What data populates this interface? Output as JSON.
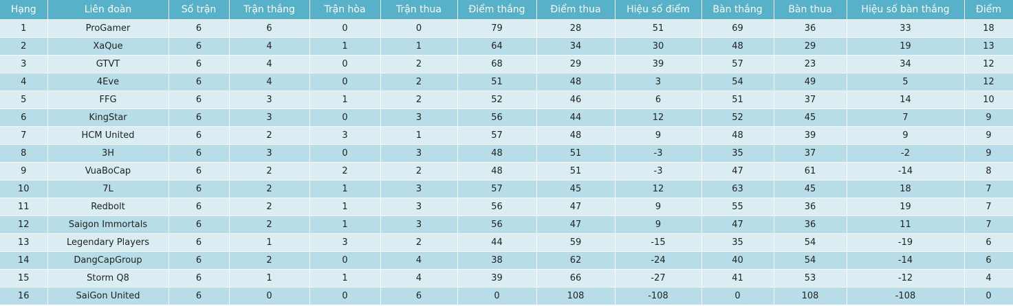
{
  "table": {
    "headers": [
      "Hạng",
      "Liên đoàn",
      "Số trận",
      "Trận thắng",
      "Trận hòa",
      "Trận thua",
      "Điểm thắng",
      "Điểm thua",
      "Hiệu số điểm",
      "Bàn thắng",
      "Bàn thua",
      "Hiệu số bàn thắng",
      "Điểm"
    ],
    "rows": [
      [
        "1",
        "ProGamer",
        "6",
        "6",
        "0",
        "0",
        "79",
        "28",
        "51",
        "69",
        "36",
        "33",
        "18"
      ],
      [
        "2",
        "XaQue",
        "6",
        "4",
        "1",
        "1",
        "64",
        "34",
        "30",
        "48",
        "29",
        "19",
        "13"
      ],
      [
        "3",
        "GTVT",
        "6",
        "4",
        "0",
        "2",
        "68",
        "29",
        "39",
        "57",
        "23",
        "34",
        "12"
      ],
      [
        "4",
        "4Eve",
        "6",
        "4",
        "0",
        "2",
        "51",
        "48",
        "3",
        "54",
        "49",
        "5",
        "12"
      ],
      [
        "5",
        "FFG",
        "6",
        "3",
        "1",
        "2",
        "52",
        "46",
        "6",
        "51",
        "37",
        "14",
        "10"
      ],
      [
        "6",
        "KingStar",
        "6",
        "3",
        "0",
        "3",
        "56",
        "44",
        "12",
        "52",
        "45",
        "7",
        "9"
      ],
      [
        "7",
        "HCM United",
        "6",
        "2",
        "3",
        "1",
        "57",
        "48",
        "9",
        "48",
        "39",
        "9",
        "9"
      ],
      [
        "8",
        "3H",
        "6",
        "3",
        "0",
        "3",
        "48",
        "51",
        "-3",
        "35",
        "37",
        "-2",
        "9"
      ],
      [
        "9",
        "VuaBoCap",
        "6",
        "2",
        "2",
        "2",
        "48",
        "51",
        "-3",
        "47",
        "61",
        "-14",
        "8"
      ],
      [
        "10",
        "7L",
        "6",
        "2",
        "1",
        "3",
        "57",
        "45",
        "12",
        "63",
        "45",
        "18",
        "7"
      ],
      [
        "11",
        "Redbolt",
        "6",
        "2",
        "1",
        "3",
        "56",
        "47",
        "9",
        "55",
        "36",
        "19",
        "7"
      ],
      [
        "12",
        "Saigon Immortals",
        "6",
        "2",
        "1",
        "3",
        "56",
        "47",
        "9",
        "47",
        "36",
        "11",
        "7"
      ],
      [
        "13",
        "Legendary Players",
        "6",
        "1",
        "3",
        "2",
        "44",
        "59",
        "-15",
        "35",
        "54",
        "-19",
        "6"
      ],
      [
        "14",
        "DangCapGroup",
        "6",
        "2",
        "0",
        "4",
        "38",
        "62",
        "-24",
        "40",
        "54",
        "-14",
        "6"
      ],
      [
        "15",
        "Storm Q8",
        "6",
        "1",
        "1",
        "4",
        "39",
        "66",
        "-27",
        "41",
        "53",
        "-12",
        "4"
      ],
      [
        "16",
        "SaiGon United",
        "6",
        "0",
        "0",
        "6",
        "0",
        "108",
        "-108",
        "0",
        "108",
        "-108",
        "0"
      ]
    ]
  },
  "colors": {
    "header_bg": "#57b2c9",
    "row_light": "#d9edf2",
    "row_dark": "#b7dde8"
  }
}
